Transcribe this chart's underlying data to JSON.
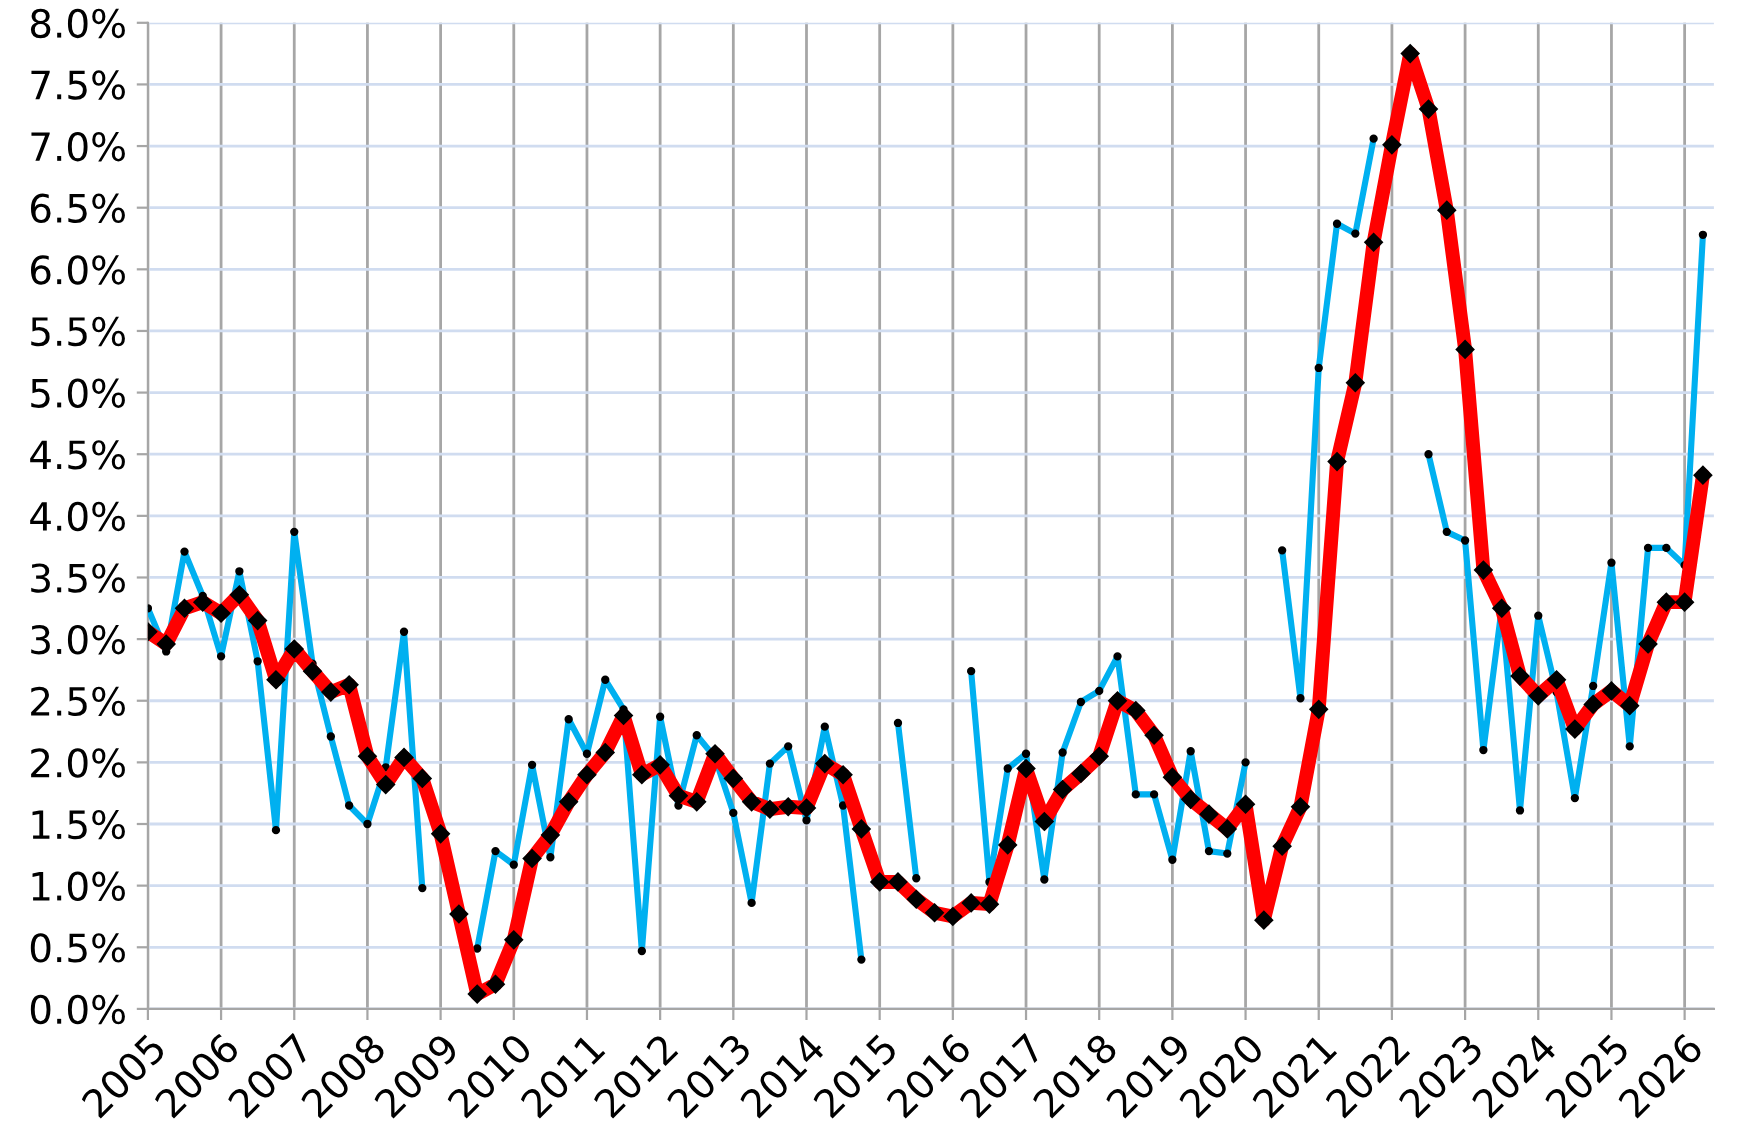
{
  "chart_data": {
    "type": "line",
    "x": [
      2005,
      2005.25,
      2005.5,
      2005.75,
      2006,
      2006.25,
      2006.5,
      2006.75,
      2007,
      2007.25,
      2007.5,
      2007.75,
      2008,
      2008.25,
      2008.5,
      2008.75,
      2009,
      2009.25,
      2009.5,
      2009.75,
      2010,
      2010.25,
      2010.5,
      2010.75,
      2011,
      2011.25,
      2011.5,
      2011.75,
      2012,
      2012.25,
      2012.5,
      2012.75,
      2013,
      2013.25,
      2013.5,
      2013.75,
      2014,
      2014.25,
      2014.5,
      2014.75,
      2015,
      2015.25,
      2015.5,
      2015.75,
      2016,
      2016.25,
      2016.5,
      2016.75,
      2017,
      2017.25,
      2017.5,
      2017.75,
      2018,
      2018.25,
      2018.5,
      2018.75,
      2019,
      2019.25,
      2019.5,
      2019.75,
      2020,
      2020.25,
      2020.5,
      2020.75,
      2021,
      2021.25,
      2021.5,
      2021.75,
      2022,
      2022.25,
      2022.5,
      2022.75,
      2023,
      2023.25,
      2023.5,
      2023.75,
      2024,
      2024.25,
      2024.5,
      2024.75,
      2025,
      2025.25,
      2025.5,
      2025.75,
      2026,
      2026.25
    ],
    "series": [
      {
        "color": "#00b0f0",
        "marker": "circle",
        "values": [
          3.25,
          2.9,
          3.71,
          3.35,
          2.86,
          3.55,
          2.82,
          1.45,
          3.87,
          2.8,
          2.21,
          1.65,
          1.5,
          1.96,
          3.06,
          0.98,
          null,
          null,
          0.49,
          1.28,
          1.17,
          1.98,
          1.23,
          2.35,
          2.07,
          2.67,
          2.43,
          0.47,
          2.37,
          1.65,
          2.22,
          2.04,
          1.59,
          0.86,
          1.99,
          2.13,
          1.53,
          2.29,
          1.65,
          0.4,
          null,
          2.32,
          1.06,
          null,
          null,
          2.74,
          1.03,
          1.95,
          2.07,
          1.05,
          2.08,
          2.49,
          2.58,
          2.86,
          1.74,
          1.74,
          1.21,
          2.09,
          1.28,
          1.26,
          2.0,
          null,
          3.72,
          2.52,
          5.2,
          6.37,
          6.29,
          7.06,
          null,
          null,
          4.5,
          3.87,
          3.8,
          2.1,
          3.25,
          1.61,
          3.19,
          2.57,
          1.71,
          2.62,
          3.62,
          2.13,
          3.74,
          3.74,
          3.6,
          6.28
        ]
      },
      {
        "color": "#ff0000",
        "marker": "diamond",
        "values": [
          3.06,
          2.96,
          3.25,
          3.3,
          3.21,
          3.36,
          3.15,
          2.67,
          2.92,
          2.74,
          2.57,
          2.63,
          2.05,
          1.82,
          2.04,
          1.87,
          1.42,
          0.77,
          0.12,
          0.2,
          0.56,
          1.22,
          1.41,
          1.68,
          1.9,
          2.08,
          2.38,
          1.9,
          1.98,
          1.73,
          1.68,
          2.07,
          1.87,
          1.68,
          1.62,
          1.64,
          1.63,
          1.99,
          1.9,
          1.46,
          1.03,
          1.03,
          0.89,
          0.78,
          0.75,
          0.86,
          0.85,
          1.33,
          1.95,
          1.52,
          1.78,
          1.91,
          2.05,
          2.5,
          2.42,
          2.22,
          1.88,
          1.7,
          1.58,
          1.46,
          1.66,
          0.72,
          1.32,
          1.64,
          2.43,
          4.44,
          5.08,
          6.22,
          7.01,
          7.75,
          7.3,
          6.48,
          5.35,
          3.56,
          3.25,
          2.7,
          2.54,
          2.67,
          2.27,
          2.47,
          2.58,
          2.46,
          2.96,
          3.3,
          3.3,
          4.33
        ]
      }
    ],
    "xlim": [
      2005,
      2026.4
    ],
    "xticks": [
      2005,
      2006,
      2007,
      2008,
      2009,
      2010,
      2011,
      2012,
      2013,
      2014,
      2015,
      2016,
      2017,
      2018,
      2019,
      2020,
      2021,
      2022,
      2023,
      2024,
      2025,
      2026
    ],
    "ylim": [
      0,
      8
    ],
    "yticks": [
      {
        "value": 0,
        "label": "0.0%"
      },
      {
        "value": 0.5,
        "label": "0.5%"
      },
      {
        "value": 1,
        "label": "1.0%"
      },
      {
        "value": 1.5,
        "label": "1.5%"
      },
      {
        "value": 2,
        "label": "2.0%"
      },
      {
        "value": 2.5,
        "label": "2.5%"
      },
      {
        "value": 3,
        "label": "3.0%"
      },
      {
        "value": 3.5,
        "label": "3.5%"
      },
      {
        "value": 4,
        "label": "4.0%"
      },
      {
        "value": 4.5,
        "label": "4.5%"
      },
      {
        "value": 5,
        "label": "5.0%"
      },
      {
        "value": 5.5,
        "label": "5.5%"
      },
      {
        "value": 6,
        "label": "6.0%"
      },
      {
        "value": 6.5,
        "label": "6.5%"
      },
      {
        "value": 7,
        "label": "7.0%"
      },
      {
        "value": 7.5,
        "label": "7.5%"
      },
      {
        "value": 8,
        "label": "8.0%"
      }
    ],
    "grid": true,
    "line_style": "solid",
    "legend": false
  }
}
